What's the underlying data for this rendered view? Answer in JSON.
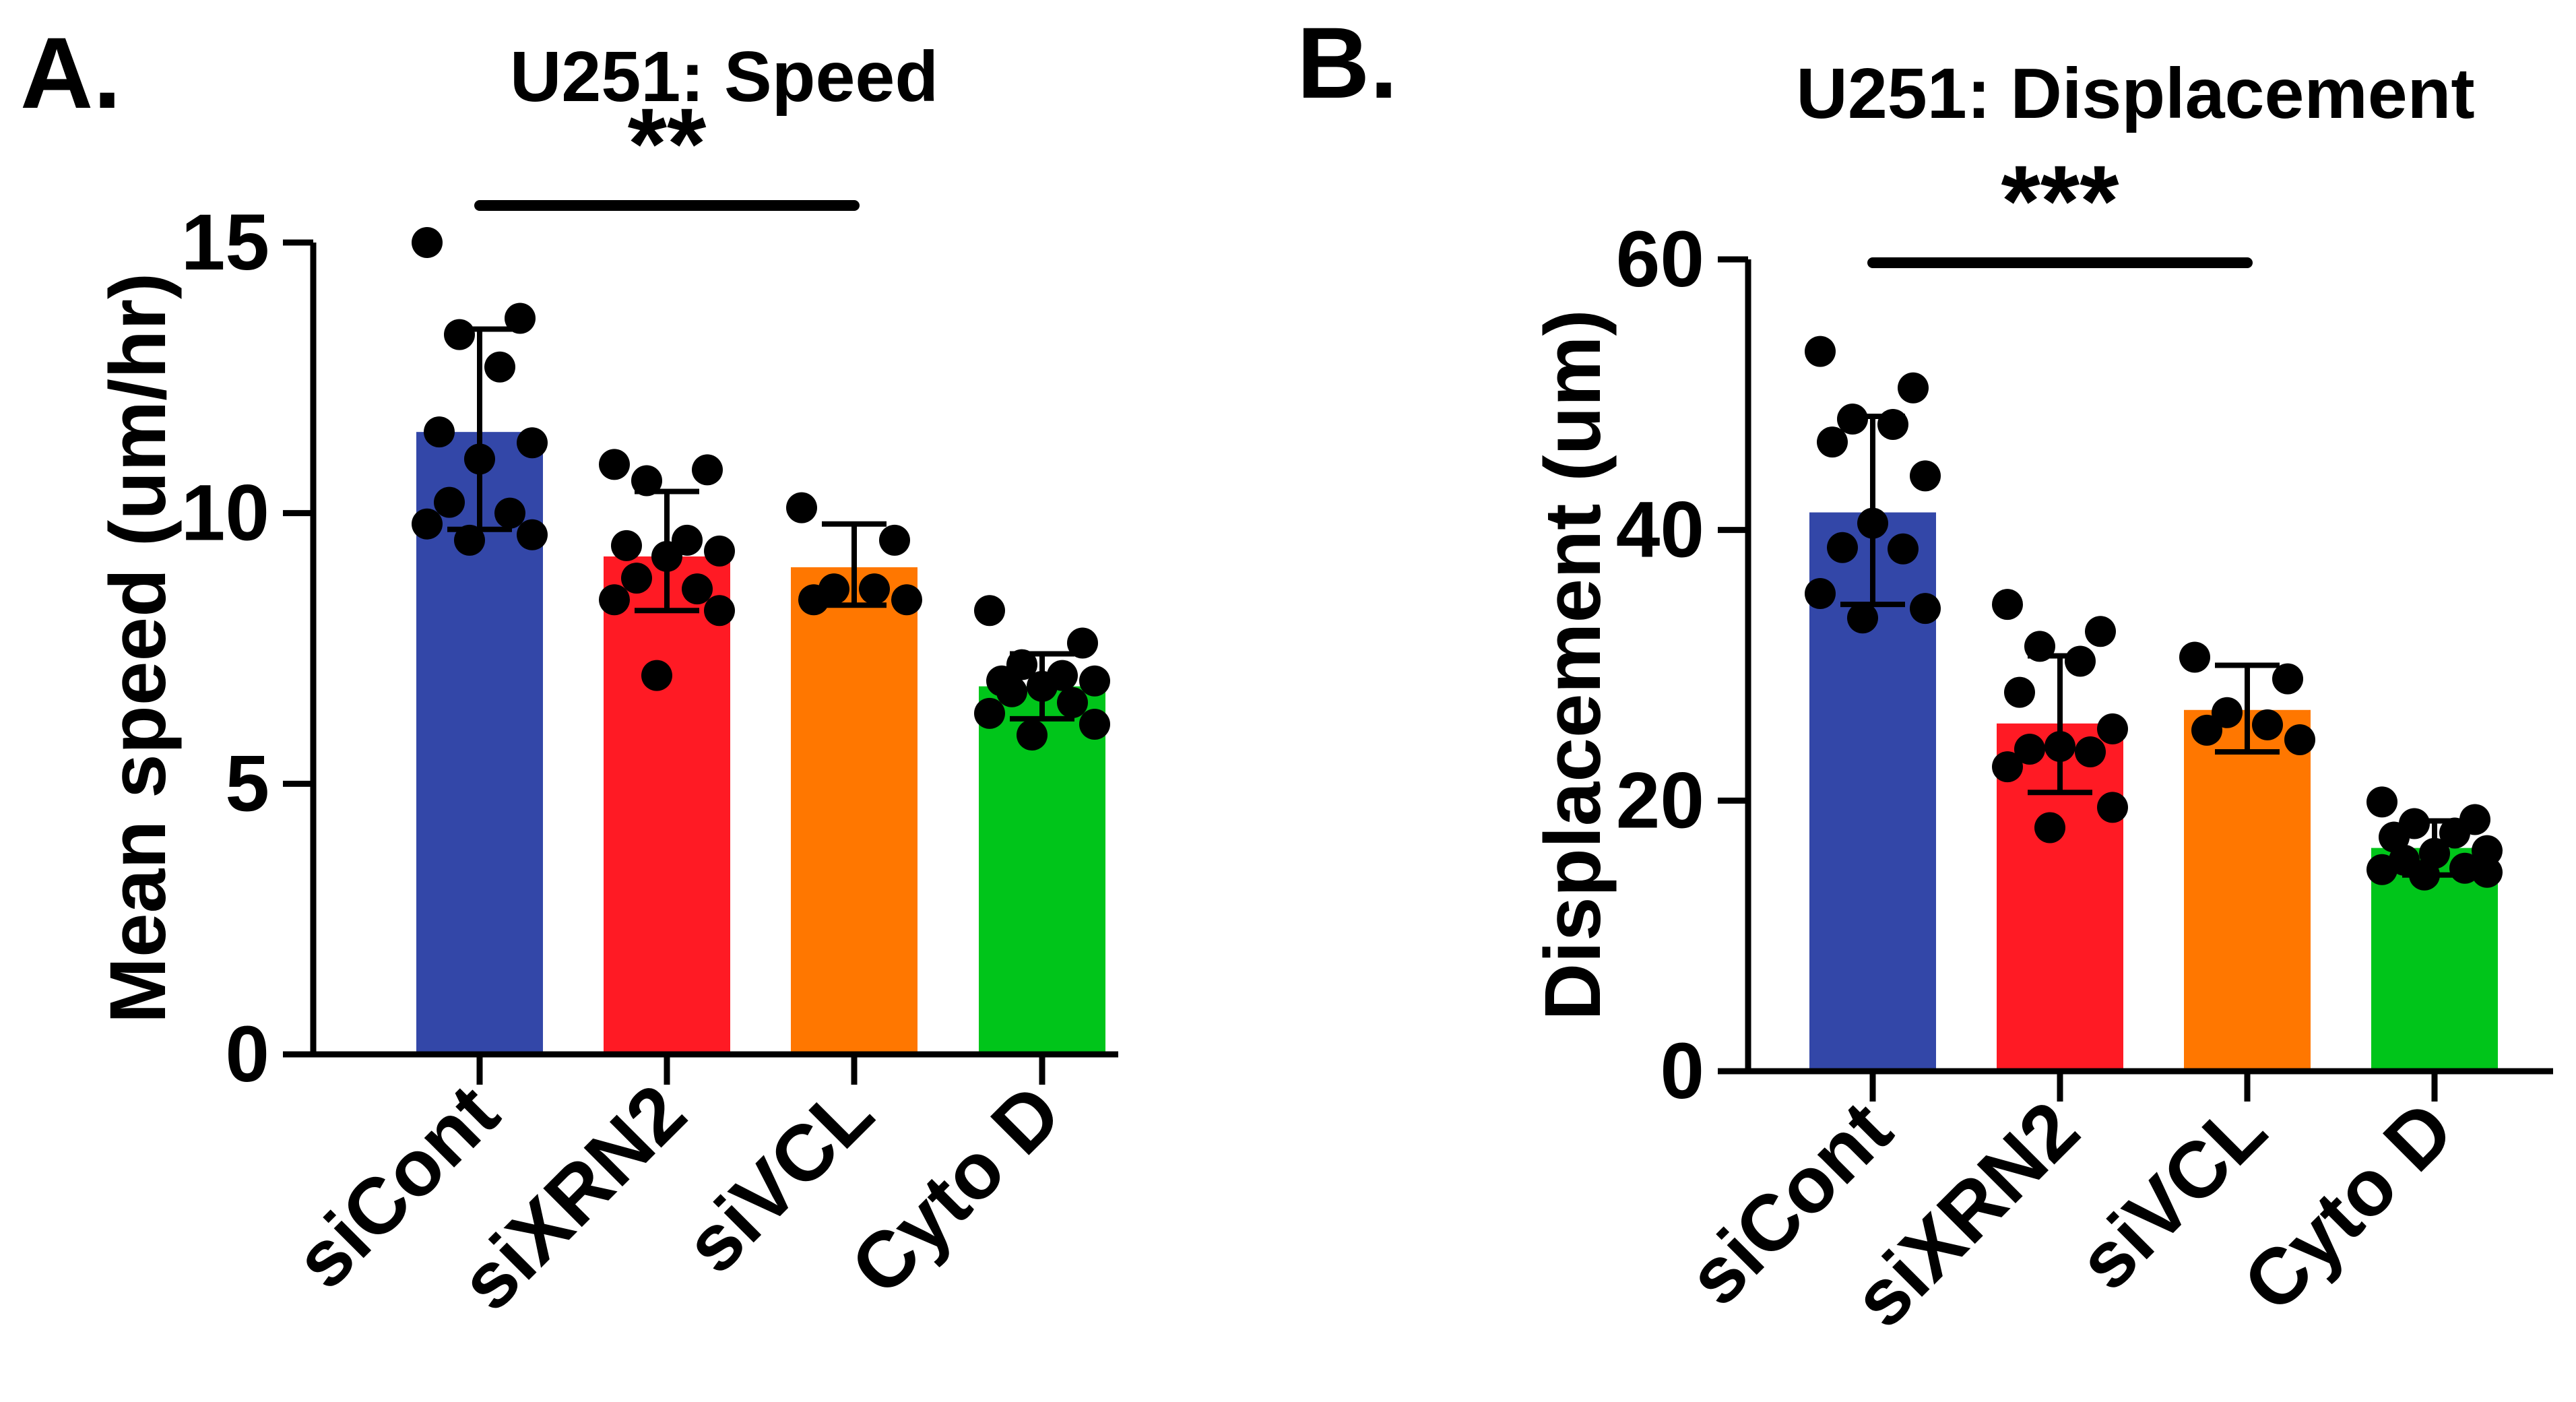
{
  "chart_data": [
    {
      "type": "bar",
      "panel_label": "A.",
      "title": "U251: Speed",
      "xlabel": "",
      "ylabel": "Mean speed (um/hr)",
      "ylim": [
        0,
        15
      ],
      "yticks": [
        "0",
        "5",
        "10",
        "15"
      ],
      "categories": [
        "siCont",
        "siXRN2",
        "siVCL",
        "Cyto D"
      ],
      "values": [
        11.5,
        9.2,
        9.0,
        6.8
      ],
      "error_low": [
        9.7,
        8.2,
        8.3,
        6.2
      ],
      "error_high": [
        13.4,
        10.4,
        9.8,
        7.4
      ],
      "colors": [
        "#3347A8",
        "#FF1A24",
        "#FF7700",
        "#00C51A"
      ],
      "points": [
        [
          15.0,
          13.6,
          13.3,
          12.7,
          11.5,
          11.3,
          11.0,
          10.2,
          10.0,
          9.8,
          9.6,
          9.5
        ],
        [
          10.9,
          10.8,
          10.6,
          9.5,
          9.4,
          9.3,
          9.2,
          8.8,
          8.6,
          8.4,
          8.2,
          7.0
        ],
        [
          10.1,
          9.5,
          8.6,
          8.6,
          8.4,
          8.4
        ],
        [
          8.2,
          7.6,
          7.2,
          7.0,
          6.9,
          6.9,
          6.8,
          6.7,
          6.5,
          6.3,
          6.1,
          5.9
        ]
      ],
      "significance": {
        "label": "**",
        "from": "siCont",
        "to": "siVCL"
      }
    },
    {
      "type": "bar",
      "panel_label": "B.",
      "title": "U251: Displacement",
      "xlabel": "",
      "ylabel": "Displacement (um)",
      "ylim": [
        0,
        60
      ],
      "yticks": [
        "0",
        "20",
        "40",
        "60"
      ],
      "categories": [
        "siCont",
        "siXRN2",
        "siVCL",
        "Cyto D"
      ],
      "values": [
        41.3,
        25.7,
        26.7,
        16.5
      ],
      "error_low": [
        34.5,
        20.6,
        23.6,
        14.5
      ],
      "error_high": [
        48.4,
        30.7,
        30.0,
        18.5
      ],
      "colors": [
        "#3347A8",
        "#FF1A24",
        "#FF7700",
        "#00C51A"
      ],
      "points": [
        [
          53.2,
          50.5,
          48.2,
          47.8,
          46.5,
          44.0,
          40.5,
          38.7,
          38.6,
          35.3,
          34.2,
          33.5
        ],
        [
          34.5,
          32.5,
          31.4,
          30.3,
          28.0,
          25.3,
          24.0,
          23.8,
          23.6,
          22.5,
          19.5,
          18.0
        ],
        [
          30.6,
          29.0,
          26.5,
          25.6,
          25.2,
          24.5
        ],
        [
          19.9,
          18.6,
          18.3,
          17.6,
          17.3,
          16.3,
          16.1,
          15.6,
          15.0,
          14.9,
          14.7,
          14.5
        ]
      ],
      "significance": {
        "label": "***",
        "from": "siCont",
        "to": "siVCL"
      }
    }
  ]
}
